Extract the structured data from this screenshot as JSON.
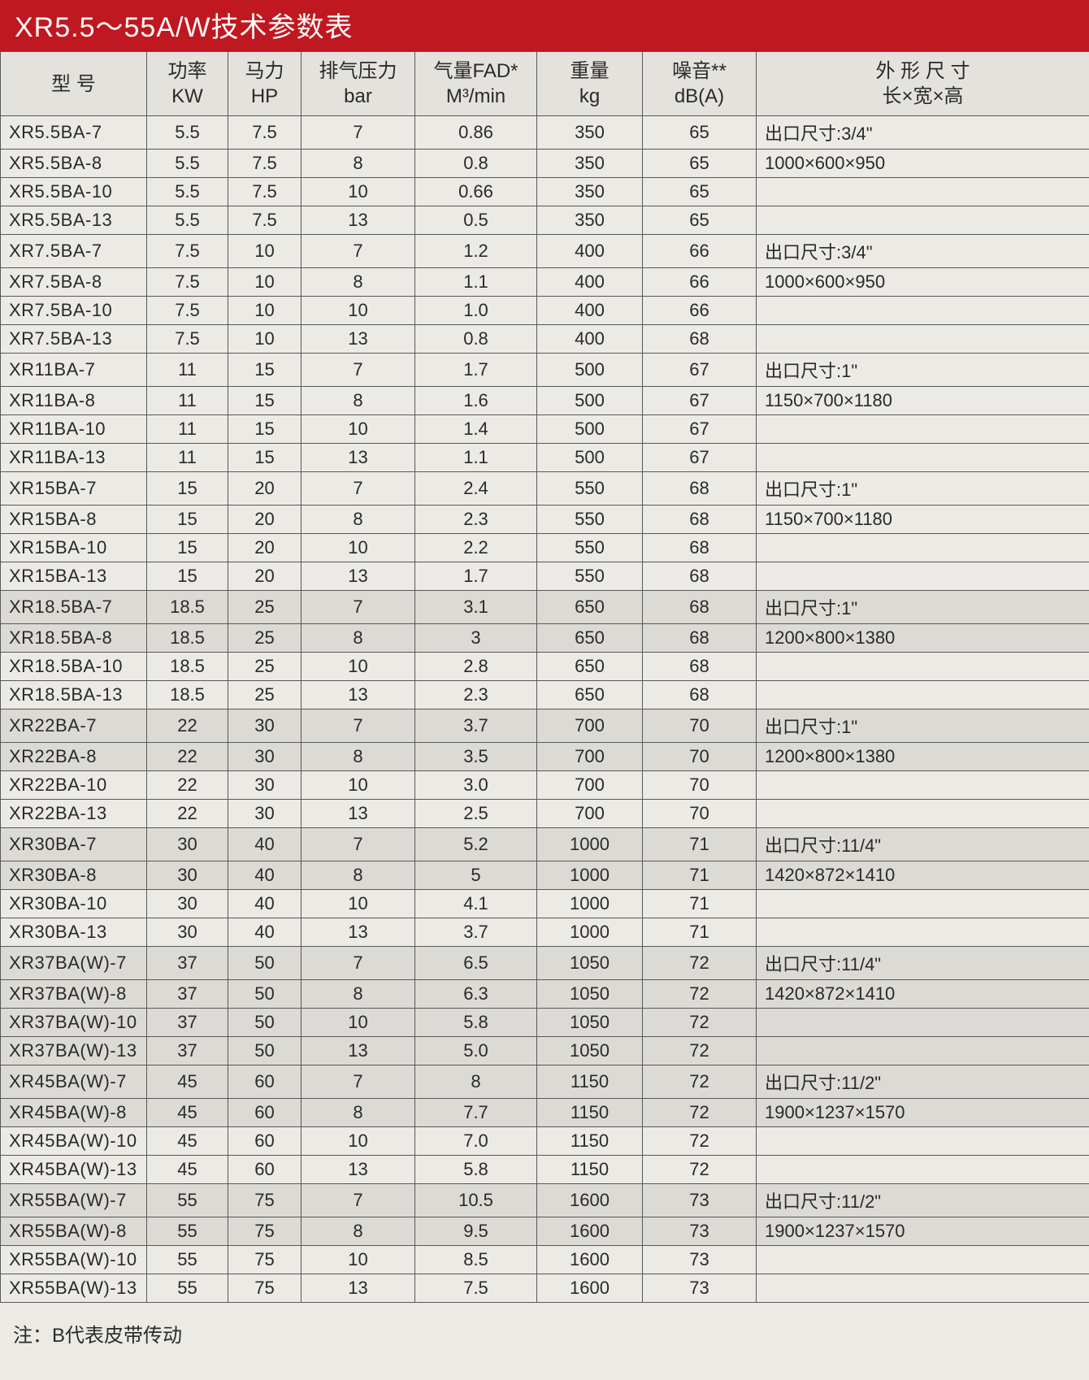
{
  "title": "XR5.5～55A/W技术参数表",
  "footnote": "注：B代表皮带传动",
  "columns": [
    {
      "top": "型 号",
      "bottom": ""
    },
    {
      "top": "功率",
      "bottom": "KW"
    },
    {
      "top": "马力",
      "bottom": "HP"
    },
    {
      "top": "排气压力",
      "bottom": "bar"
    },
    {
      "top": "气量FAD*",
      "bottom": "M³/min"
    },
    {
      "top": "重量",
      "bottom": "kg"
    },
    {
      "top": "噪音**",
      "bottom": "dB(A)"
    },
    {
      "top": "外 形 尺 寸",
      "bottom": "长×宽×高"
    }
  ],
  "rows": [
    {
      "model": "XR5.5BA-7",
      "kw": "5.5",
      "hp": "7.5",
      "bar": "7",
      "fad": "0.86",
      "kg": "350",
      "db": "65",
      "dim": "出口尺寸:3/4\""
    },
    {
      "model": "XR5.5BA-8",
      "kw": "5.5",
      "hp": "7.5",
      "bar": "8",
      "fad": "0.8",
      "kg": "350",
      "db": "65",
      "dim": "1000×600×950"
    },
    {
      "model": "XR5.5BA-10",
      "kw": "5.5",
      "hp": "7.5",
      "bar": "10",
      "fad": "0.66",
      "kg": "350",
      "db": "65",
      "dim": ""
    },
    {
      "model": "XR5.5BA-13",
      "kw": "5.5",
      "hp": "7.5",
      "bar": "13",
      "fad": "0.5",
      "kg": "350",
      "db": "65",
      "dim": ""
    },
    {
      "model": "XR7.5BA-7",
      "kw": "7.5",
      "hp": "10",
      "bar": "7",
      "fad": "1.2",
      "kg": "400",
      "db": "66",
      "dim": "出口尺寸:3/4\""
    },
    {
      "model": "XR7.5BA-8",
      "kw": "7.5",
      "hp": "10",
      "bar": "8",
      "fad": "1.1",
      "kg": "400",
      "db": "66",
      "dim": "1000×600×950"
    },
    {
      "model": "XR7.5BA-10",
      "kw": "7.5",
      "hp": "10",
      "bar": "10",
      "fad": "1.0",
      "kg": "400",
      "db": "66",
      "dim": ""
    },
    {
      "model": "XR7.5BA-13",
      "kw": "7.5",
      "hp": "10",
      "bar": "13",
      "fad": "0.8",
      "kg": "400",
      "db": "68",
      "dim": ""
    },
    {
      "model": "XR11BA-7",
      "kw": "11",
      "hp": "15",
      "bar": "7",
      "fad": "1.7",
      "kg": "500",
      "db": "67",
      "dim": "出口尺寸:1\""
    },
    {
      "model": "XR11BA-8",
      "kw": "11",
      "hp": "15",
      "bar": "8",
      "fad": "1.6",
      "kg": "500",
      "db": "67",
      "dim": "1150×700×1180"
    },
    {
      "model": "XR11BA-10",
      "kw": "11",
      "hp": "15",
      "bar": "10",
      "fad": "1.4",
      "kg": "500",
      "db": "67",
      "dim": ""
    },
    {
      "model": "XR11BA-13",
      "kw": "11",
      "hp": "15",
      "bar": "13",
      "fad": "1.1",
      "kg": "500",
      "db": "67",
      "dim": ""
    },
    {
      "model": "XR15BA-7",
      "kw": "15",
      "hp": "20",
      "bar": "7",
      "fad": "2.4",
      "kg": "550",
      "db": "68",
      "dim": "出口尺寸:1\""
    },
    {
      "model": "XR15BA-8",
      "kw": "15",
      "hp": "20",
      "bar": "8",
      "fad": "2.3",
      "kg": "550",
      "db": "68",
      "dim": "1150×700×1180"
    },
    {
      "model": "XR15BA-10",
      "kw": "15",
      "hp": "20",
      "bar": "10",
      "fad": "2.2",
      "kg": "550",
      "db": "68",
      "dim": ""
    },
    {
      "model": "XR15BA-13",
      "kw": "15",
      "hp": "20",
      "bar": "13",
      "fad": "1.7",
      "kg": "550",
      "db": "68",
      "dim": ""
    },
    {
      "model": "XR18.5BA-7",
      "kw": "18.5",
      "hp": "25",
      "bar": "7",
      "fad": "3.1",
      "kg": "650",
      "db": "68",
      "dim": "出口尺寸:1\"",
      "shade": true
    },
    {
      "model": "XR18.5BA-8",
      "kw": "18.5",
      "hp": "25",
      "bar": "8",
      "fad": "3",
      "kg": "650",
      "db": "68",
      "dim": "1200×800×1380",
      "shade": true
    },
    {
      "model": "XR18.5BA-10",
      "kw": "18.5",
      "hp": "25",
      "bar": "10",
      "fad": "2.8",
      "kg": "650",
      "db": "68",
      "dim": ""
    },
    {
      "model": "XR18.5BA-13",
      "kw": "18.5",
      "hp": "25",
      "bar": "13",
      "fad": "2.3",
      "kg": "650",
      "db": "68",
      "dim": ""
    },
    {
      "model": "XR22BA-7",
      "kw": "22",
      "hp": "30",
      "bar": "7",
      "fad": "3.7",
      "kg": "700",
      "db": "70",
      "dim": "出口尺寸:1\"",
      "shade": true
    },
    {
      "model": "XR22BA-8",
      "kw": "22",
      "hp": "30",
      "bar": "8",
      "fad": "3.5",
      "kg": "700",
      "db": "70",
      "dim": "1200×800×1380",
      "shade": true
    },
    {
      "model": "XR22BA-10",
      "kw": "22",
      "hp": "30",
      "bar": "10",
      "fad": "3.0",
      "kg": "700",
      "db": "70",
      "dim": ""
    },
    {
      "model": "XR22BA-13",
      "kw": "22",
      "hp": "30",
      "bar": "13",
      "fad": "2.5",
      "kg": "700",
      "db": "70",
      "dim": ""
    },
    {
      "model": "XR30BA-7",
      "kw": "30",
      "hp": "40",
      "bar": "7",
      "fad": "5.2",
      "kg": "1000",
      "db": "71",
      "dim": "出口尺寸:11/4\"",
      "shade": true
    },
    {
      "model": "XR30BA-8",
      "kw": "30",
      "hp": "40",
      "bar": "8",
      "fad": "5",
      "kg": "1000",
      "db": "71",
      "dim": "1420×872×1410",
      "shade": true
    },
    {
      "model": "XR30BA-10",
      "kw": "30",
      "hp": "40",
      "bar": "10",
      "fad": "4.1",
      "kg": "1000",
      "db": "71",
      "dim": ""
    },
    {
      "model": "XR30BA-13",
      "kw": "30",
      "hp": "40",
      "bar": "13",
      "fad": "3.7",
      "kg": "1000",
      "db": "71",
      "dim": ""
    },
    {
      "model": "XR37BA(W)-7",
      "kw": "37",
      "hp": "50",
      "bar": "7",
      "fad": "6.5",
      "kg": "1050",
      "db": "72",
      "dim": "出口尺寸:11/4\"",
      "shade": true
    },
    {
      "model": "XR37BA(W)-8",
      "kw": "37",
      "hp": "50",
      "bar": "8",
      "fad": "6.3",
      "kg": "1050",
      "db": "72",
      "dim": "1420×872×1410",
      "shade": true
    },
    {
      "model": "XR37BA(W)-10",
      "kw": "37",
      "hp": "50",
      "bar": "10",
      "fad": "5.8",
      "kg": "1050",
      "db": "72",
      "dim": "",
      "shade": true
    },
    {
      "model": "XR37BA(W)-13",
      "kw": "37",
      "hp": "50",
      "bar": "13",
      "fad": "5.0",
      "kg": "1050",
      "db": "72",
      "dim": "",
      "shade": true
    },
    {
      "model": "XR45BA(W)-7",
      "kw": "45",
      "hp": "60",
      "bar": "7",
      "fad": "8",
      "kg": "1150",
      "db": "72",
      "dim": "出口尺寸:11/2\"",
      "shade": true
    },
    {
      "model": "XR45BA(W)-8",
      "kw": "45",
      "hp": "60",
      "bar": "8",
      "fad": "7.7",
      "kg": "1150",
      "db": "72",
      "dim": "1900×1237×1570",
      "shade": true
    },
    {
      "model": "XR45BA(W)-10",
      "kw": "45",
      "hp": "60",
      "bar": "10",
      "fad": "7.0",
      "kg": "1150",
      "db": "72",
      "dim": ""
    },
    {
      "model": "XR45BA(W)-13",
      "kw": "45",
      "hp": "60",
      "bar": "13",
      "fad": "5.8",
      "kg": "1150",
      "db": "72",
      "dim": ""
    },
    {
      "model": "XR55BA(W)-7",
      "kw": "55",
      "hp": "75",
      "bar": "7",
      "fad": "10.5",
      "kg": "1600",
      "db": "73",
      "dim": "出口尺寸:11/2\"",
      "shade": true
    },
    {
      "model": "XR55BA(W)-8",
      "kw": "55",
      "hp": "75",
      "bar": "8",
      "fad": "9.5",
      "kg": "1600",
      "db": "73",
      "dim": "1900×1237×1570",
      "shade": true
    },
    {
      "model": "XR55BA(W)-10",
      "kw": "55",
      "hp": "75",
      "bar": "10",
      "fad": "8.5",
      "kg": "1600",
      "db": "73",
      "dim": ""
    },
    {
      "model": "XR55BA(W)-13",
      "kw": "55",
      "hp": "75",
      "bar": "13",
      "fad": "7.5",
      "kg": "1600",
      "db": "73",
      "dim": ""
    }
  ],
  "style": {
    "title_bg": "#c01820",
    "title_color": "#fffafa",
    "page_bg": "#eceae5",
    "border_color": "#585858",
    "shade_bg": "#dcdad4",
    "font_size_body": 22,
    "font_size_header": 24,
    "font_size_title": 34
  }
}
